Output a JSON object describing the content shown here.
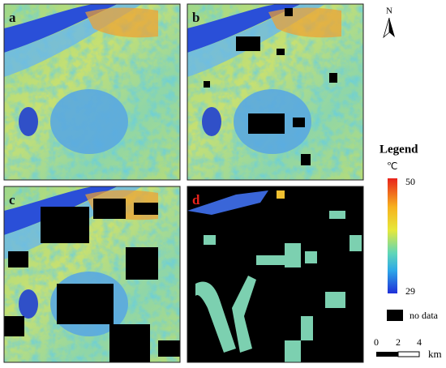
{
  "panels": [
    {
      "label": "a"
    },
    {
      "label": "b"
    },
    {
      "label": "c"
    },
    {
      "label": "d"
    }
  ],
  "north": "N",
  "legend": {
    "title": "Legend",
    "unit": "℃",
    "max": 50,
    "min": 29,
    "no_data": "no data"
  },
  "scale_bar": {
    "ticks": [
      0,
      2,
      4
    ],
    "unit": "km"
  }
}
